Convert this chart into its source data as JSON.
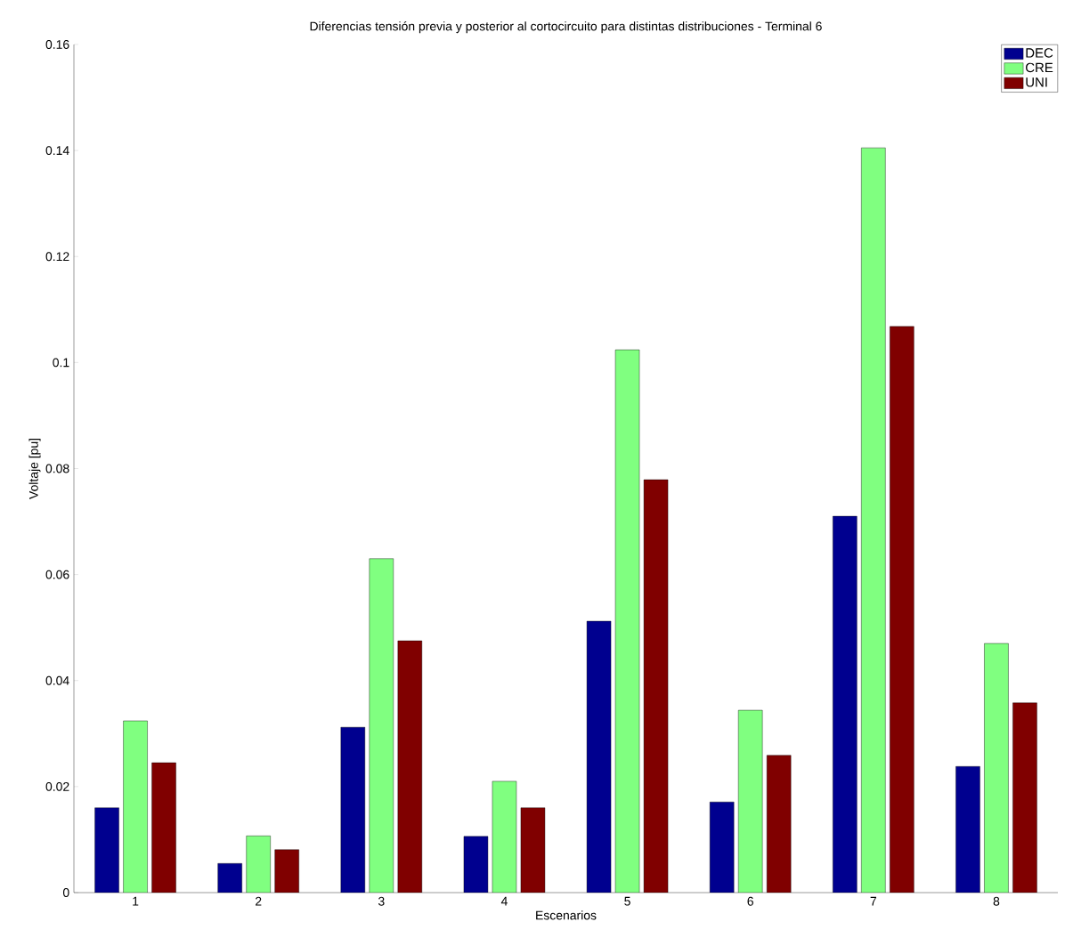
{
  "chart_data": {
    "type": "bar",
    "title": "Diferencias tensión previa y posterior al cortocircuito para distintas distribuciones - Terminal 6",
    "xlabel": "Escenarios",
    "ylabel": "Voltaje [pu]",
    "categories": [
      "1",
      "2",
      "3",
      "4",
      "5",
      "6",
      "7",
      "8"
    ],
    "series": [
      {
        "name": "DEC",
        "color": "#00008f",
        "values": [
          0.016,
          0.0055,
          0.0312,
          0.0106,
          0.0512,
          0.0171,
          0.071,
          0.0238
        ]
      },
      {
        "name": "CRE",
        "color": "#80ff80",
        "values": [
          0.0324,
          0.0107,
          0.063,
          0.021,
          0.1024,
          0.0344,
          0.1405,
          0.047
        ]
      },
      {
        "name": "UNI",
        "color": "#800000",
        "values": [
          0.0245,
          0.0081,
          0.0475,
          0.016,
          0.0779,
          0.0259,
          0.1068,
          0.0358
        ]
      }
    ],
    "ylim": [
      0,
      0.16
    ],
    "yticks": [
      0,
      0.02,
      0.04,
      0.06,
      0.08,
      0.1,
      0.12,
      0.14,
      0.16
    ],
    "legend": "top right"
  }
}
